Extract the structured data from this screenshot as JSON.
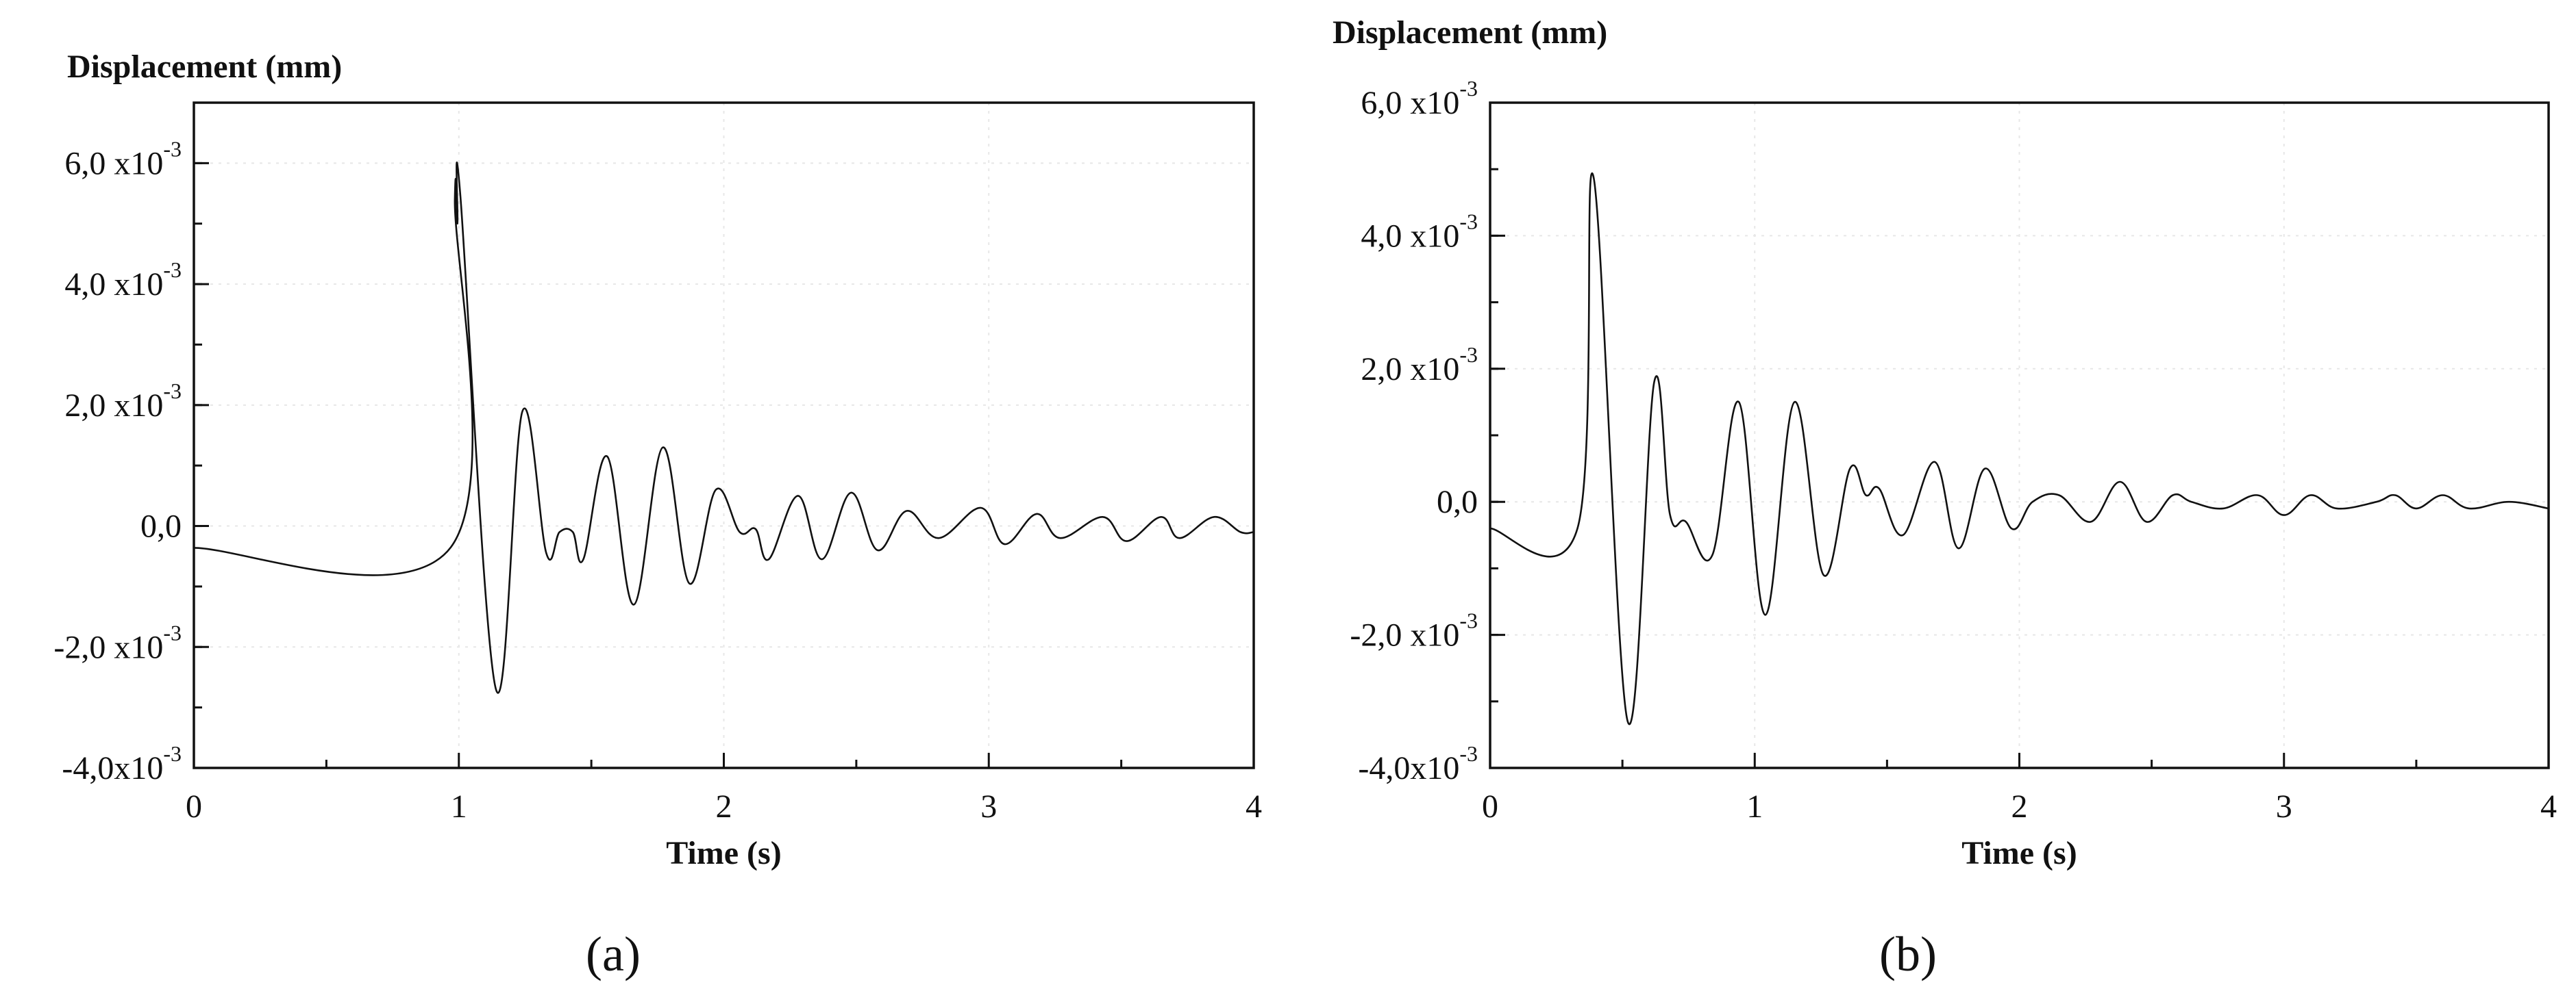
{
  "chart_data": [
    {
      "type": "line",
      "panel_label": "(a)",
      "ylabel": "Displacement (mm)",
      "xlabel": "Time (s)",
      "xlim": [
        0,
        4
      ],
      "ylim": [
        -0.004,
        0.007
      ],
      "grid": true,
      "x_ticks": [
        {
          "v": 0,
          "label": "0"
        },
        {
          "v": 1,
          "label": "1"
        },
        {
          "v": 2,
          "label": "2"
        },
        {
          "v": 3,
          "label": "3"
        },
        {
          "v": 4,
          "label": "4"
        }
      ],
      "y_ticks": [
        {
          "v": 0.006,
          "main": "6,0 x10",
          "exp": "-3"
        },
        {
          "v": 0.004,
          "main": "4,0 x10",
          "exp": "-3"
        },
        {
          "v": 0.002,
          "main": "2,0 x10",
          "exp": "-3"
        },
        {
          "v": 0.0,
          "main": "0,0",
          "exp": ""
        },
        {
          "v": -0.002,
          "main": "-2,0 x10",
          "exp": "-3"
        },
        {
          "v": -0.004,
          "main": "-4,0x10",
          "exp": "-3"
        }
      ],
      "series": [
        {
          "points": [
            [
              0,
              -0.00036
            ],
            [
              0.97,
              -0.00035
            ],
            [
              0.985,
              0.0054
            ],
            [
              0.995,
              0.005
            ],
            [
              1.005,
              0.0055
            ],
            [
              1.14,
              -0.0027
            ],
            [
              1.24,
              0.0019
            ],
            [
              1.33,
              -0.00045
            ],
            [
              1.38,
              -0.0001
            ],
            [
              1.43,
              -0.0001
            ],
            [
              1.47,
              -0.00055
            ],
            [
              1.56,
              0.00115
            ],
            [
              1.66,
              -0.0013
            ],
            [
              1.77,
              0.0013
            ],
            [
              1.87,
              -0.00095
            ],
            [
              1.97,
              0.0006
            ],
            [
              2.06,
              -0.0001
            ],
            [
              2.12,
              -5e-05
            ],
            [
              2.17,
              -0.00055
            ],
            [
              2.28,
              0.0005
            ],
            [
              2.37,
              -0.00055
            ],
            [
              2.48,
              0.00055
            ],
            [
              2.58,
              -0.0004
            ],
            [
              2.69,
              0.00025
            ],
            [
              2.81,
              -0.0002
            ],
            [
              2.97,
              0.0003
            ],
            [
              3.06,
              -0.0003
            ],
            [
              3.18,
              0.0002
            ],
            [
              3.27,
              -0.0002
            ],
            [
              3.43,
              0.00015
            ],
            [
              3.52,
              -0.00025
            ],
            [
              3.65,
              0.00015
            ],
            [
              3.72,
              -0.0002
            ],
            [
              3.85,
              0.00015
            ],
            [
              3.95,
              -0.0001
            ],
            [
              4.0,
              -0.0001
            ]
          ]
        }
      ]
    },
    {
      "type": "line",
      "panel_label": "(b)",
      "ylabel": "Displacement (mm)",
      "xlabel": "Time (s)",
      "xlim": [
        0,
        4
      ],
      "ylim": [
        -0.004,
        0.006
      ],
      "grid": true,
      "x_ticks": [
        {
          "v": 0,
          "label": "0"
        },
        {
          "v": 1,
          "label": "1"
        },
        {
          "v": 2,
          "label": "2"
        },
        {
          "v": 3,
          "label": "3"
        },
        {
          "v": 4,
          "label": "4"
        }
      ],
      "y_ticks": [
        {
          "v": 0.006,
          "main": "6,0 x10",
          "exp": "-3"
        },
        {
          "v": 0.004,
          "main": "4,0 x10",
          "exp": "-3"
        },
        {
          "v": 0.002,
          "main": "2,0 x10",
          "exp": "-3"
        },
        {
          "v": 0.0,
          "main": "0,0",
          "exp": ""
        },
        {
          "v": -0.002,
          "main": "-2,0 x10",
          "exp": "-3"
        },
        {
          "v": -0.004,
          "main": "-4,0x10",
          "exp": "-3"
        }
      ],
      "series": [
        {
          "points": [
            [
              0,
              -0.0004
            ],
            [
              0.33,
              -0.0004
            ],
            [
              0.39,
              0.0049
            ],
            [
              0.52,
              -0.0033
            ],
            [
              0.62,
              0.0018
            ],
            [
              0.68,
              -0.0002
            ],
            [
              0.74,
              -0.0003
            ],
            [
              0.84,
              -0.0008
            ],
            [
              0.94,
              0.0015
            ],
            [
              1.04,
              -0.0017
            ],
            [
              1.15,
              0.0015
            ],
            [
              1.26,
              -0.0011
            ],
            [
              1.36,
              0.0005
            ],
            [
              1.42,
              0.0001
            ],
            [
              1.47,
              0.0002
            ],
            [
              1.56,
              -0.0005
            ],
            [
              1.68,
              0.0006
            ],
            [
              1.77,
              -0.0007
            ],
            [
              1.87,
              0.0005
            ],
            [
              1.97,
              -0.0004
            ],
            [
              2.05,
              0.0
            ],
            [
              2.15,
              0.0001
            ],
            [
              2.27,
              -0.0003
            ],
            [
              2.38,
              0.0003
            ],
            [
              2.48,
              -0.0003
            ],
            [
              2.58,
              0.0001
            ],
            [
              2.65,
              0.0
            ],
            [
              2.77,
              -0.0001
            ],
            [
              2.9,
              0.0001
            ],
            [
              3.0,
              -0.0002
            ],
            [
              3.1,
              0.0001
            ],
            [
              3.2,
              -0.0001
            ],
            [
              3.35,
              0.0
            ],
            [
              3.42,
              0.0001
            ],
            [
              3.5,
              -0.0001
            ],
            [
              3.6,
              0.0001
            ],
            [
              3.7,
              -0.0001
            ],
            [
              3.85,
              0.0
            ],
            [
              4.0,
              -0.0001
            ]
          ]
        }
      ]
    }
  ]
}
